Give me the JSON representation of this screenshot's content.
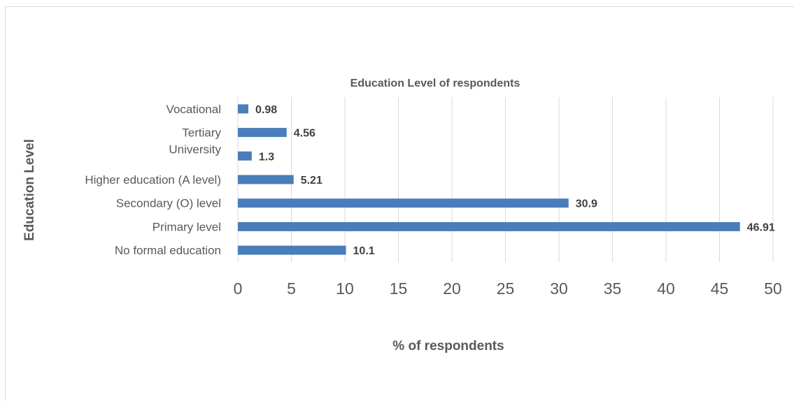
{
  "chart_data": {
    "type": "bar",
    "orientation": "horizontal",
    "title": "Education Level of respondents",
    "xlabel": "% of respondents",
    "ylabel": "Education Level",
    "categories": [
      "Vocational",
      "Tertiary",
      "University",
      "Higher education (A level)",
      "Secondary (O) level",
      "Primary level",
      "No formal education"
    ],
    "values": [
      0.98,
      4.56,
      1.3,
      5.21,
      30.9,
      46.91,
      10.1
    ],
    "value_labels": [
      "0.98",
      "4.56",
      "1.3",
      "5.21",
      "30.9",
      "46.91",
      "10.1"
    ],
    "xlim": [
      0,
      50
    ],
    "xticks": [
      "0",
      "5",
      "10",
      "15",
      "20",
      "25",
      "30",
      "35",
      "40",
      "45",
      "50"
    ],
    "grid": "vertical",
    "legend": "none",
    "bar_color": "#4a7ebb"
  }
}
